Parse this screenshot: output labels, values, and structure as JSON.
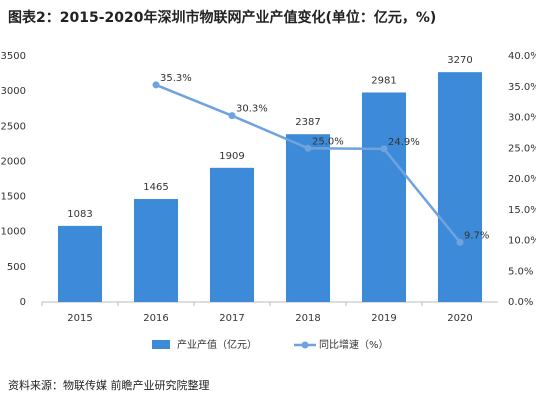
{
  "chart_data": {
    "type": "bar_line",
    "title": "图表2：2015-2020年深圳市物联网产业产值变化(单位：亿元，%)",
    "categories": [
      "2015",
      "2016",
      "2017",
      "2018",
      "2019",
      "2020"
    ],
    "series": [
      {
        "name": "产业产值（亿元）",
        "type": "bar",
        "color": "#3d8ad8",
        "values": [
          1083,
          1465,
          1909,
          2387,
          2981,
          3270
        ]
      },
      {
        "name": "同比增速（%）",
        "type": "line",
        "axis": "y2",
        "color": "#6fa3df",
        "values": [
          null,
          35.3,
          30.3,
          25.0,
          24.9,
          9.7
        ],
        "value_labels": [
          null,
          "35.3%",
          "30.3%",
          "25.0%",
          "24.9%",
          "9.7%"
        ]
      }
    ],
    "ylim": [
      0,
      3500
    ],
    "yticks": [
      0,
      500,
      1000,
      1500,
      2000,
      2500,
      3000,
      3500
    ],
    "y2lim": [
      0,
      40
    ],
    "y2ticks": [
      {
        "value": 0,
        "label": "0.0%"
      },
      {
        "value": 5,
        "label": "5.0%"
      },
      {
        "value": 10,
        "label": "10.0%"
      },
      {
        "value": 15,
        "label": "15.0%"
      },
      {
        "value": 20,
        "label": "20.0%"
      },
      {
        "value": 25,
        "label": "25.0%"
      },
      {
        "value": 30,
        "label": "30.0%"
      },
      {
        "value": 35,
        "label": "35.0%"
      },
      {
        "value": 40,
        "label": "40.0%"
      }
    ],
    "source": "资料来源：物联传媒 前瞻产业研究院整理"
  }
}
